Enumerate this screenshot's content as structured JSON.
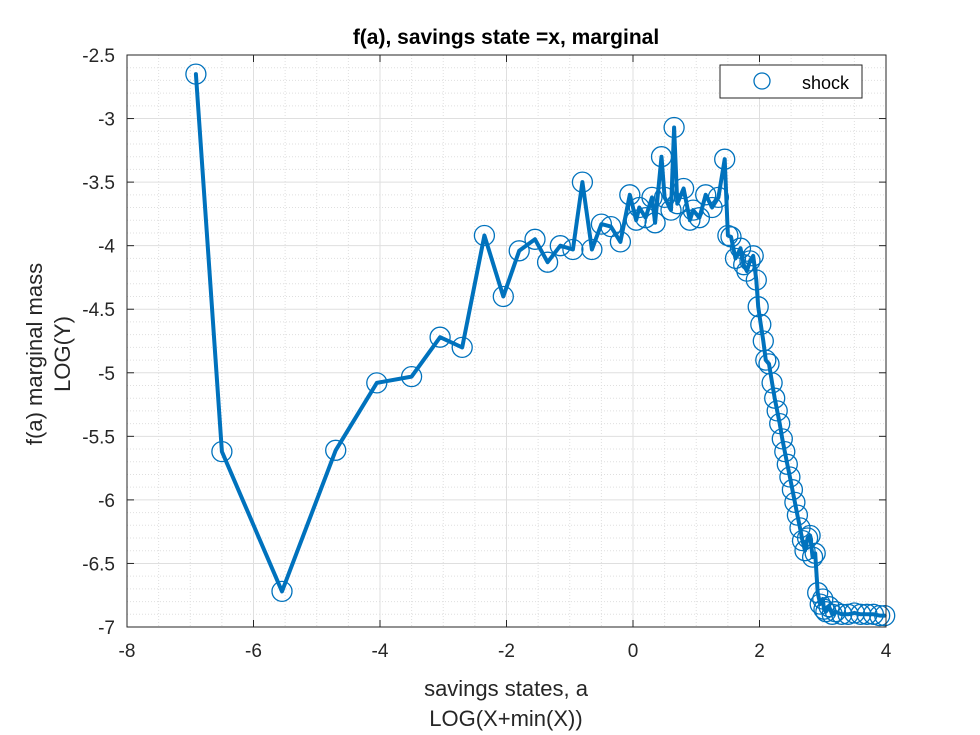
{
  "chart_data": {
    "type": "line",
    "title": "f(a), savings state =x, marginal",
    "xlabel": [
      "savings states, a",
      "LOG(X+min(X))"
    ],
    "ylabel": [
      "f(a) marginal mass",
      "LOG(Y)"
    ],
    "xlim": [
      -8,
      4
    ],
    "ylim": [
      -7,
      -2.5
    ],
    "xticks": [
      -8,
      -6,
      -4,
      -2,
      0,
      2,
      4
    ],
    "yticks": [
      -2.5,
      -3,
      -3.5,
      -4,
      -4.5,
      -5,
      -5.5,
      -6,
      -6.5,
      -7
    ],
    "xtick_labels": [
      "-8",
      "-6",
      "-4",
      "-2",
      "0",
      "2",
      "4"
    ],
    "ytick_labels": [
      "-2.5",
      "-3",
      "-3.5",
      "-4",
      "-4.5",
      "-5",
      "-5.5",
      "-6",
      "-6.5",
      "-7"
    ],
    "grid": true,
    "minor_grid": true,
    "legend": {
      "location": "top-right",
      "entries": [
        "shock"
      ]
    },
    "colors": {
      "series": "#0072BD",
      "grid": "#dfdfdf",
      "axis": "#262626"
    },
    "series": [
      {
        "name": "shock",
        "marker": "circle",
        "x": [
          -6.91,
          -6.5,
          -5.55,
          -4.7,
          -4.05,
          -3.5,
          -3.05,
          -2.7,
          -2.35,
          -2.05,
          -1.8,
          -1.55,
          -1.35,
          -1.15,
          -0.95,
          -0.8,
          -0.65,
          -0.5,
          -0.35,
          -0.2,
          -0.05,
          0.05,
          0.1,
          0.2,
          0.3,
          0.35,
          0.45,
          0.5,
          0.6,
          0.65,
          0.7,
          0.8,
          0.9,
          0.95,
          1.05,
          1.15,
          1.25,
          1.35,
          1.45,
          1.5,
          1.55,
          1.62,
          1.7,
          1.75,
          1.8,
          1.85,
          1.9,
          1.95,
          1.98,
          2.02,
          2.06,
          2.1,
          2.15,
          2.2,
          2.24,
          2.28,
          2.32,
          2.36,
          2.4,
          2.44,
          2.48,
          2.52,
          2.56,
          2.6,
          2.64,
          2.68,
          2.72,
          2.76,
          2.8,
          2.84,
          2.88,
          2.92,
          2.96,
          3.0,
          3.02,
          3.05,
          3.1,
          3.15,
          3.2,
          3.3,
          3.4,
          3.5,
          3.6,
          3.7,
          3.8,
          3.9,
          3.98
        ],
        "y": [
          -2.65,
          -5.62,
          -6.72,
          -5.61,
          -5.08,
          -5.03,
          -4.72,
          -4.8,
          -3.92,
          -4.4,
          -4.04,
          -3.95,
          -4.13,
          -4.0,
          -4.03,
          -3.5,
          -4.03,
          -3.83,
          -3.85,
          -3.97,
          -3.6,
          -3.8,
          -3.7,
          -3.78,
          -3.62,
          -3.82,
          -3.3,
          -3.62,
          -3.72,
          -3.07,
          -3.67,
          -3.55,
          -3.8,
          -3.72,
          -3.78,
          -3.6,
          -3.7,
          -3.62,
          -3.32,
          -3.92,
          -3.93,
          -4.1,
          -4.02,
          -4.15,
          -4.2,
          -4.12,
          -4.08,
          -4.27,
          -4.48,
          -4.62,
          -4.75,
          -4.9,
          -4.93,
          -5.08,
          -5.2,
          -5.3,
          -5.4,
          -5.52,
          -5.62,
          -5.72,
          -5.82,
          -5.92,
          -6.02,
          -6.12,
          -6.22,
          -6.32,
          -6.4,
          -6.3,
          -6.28,
          -6.45,
          -6.42,
          -6.73,
          -6.82,
          -6.78,
          -6.86,
          -6.88,
          -6.84,
          -6.9,
          -6.88,
          -6.9,
          -6.9,
          -6.89,
          -6.9,
          -6.9,
          -6.9,
          -6.91,
          -6.91
        ]
      }
    ]
  }
}
